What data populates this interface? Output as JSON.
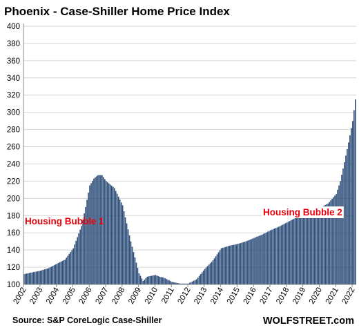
{
  "chart_data": {
    "type": "bar",
    "title": "Phoenix - Case-Shiller Home Price Index",
    "xlabel": "",
    "ylabel": "",
    "ylim": [
      100,
      400
    ],
    "yticks": [
      100,
      120,
      140,
      160,
      180,
      200,
      220,
      240,
      260,
      280,
      300,
      320,
      340,
      360,
      380,
      400
    ],
    "grid": "horizontal",
    "legend": "none",
    "bar_color": "#2e4f7a",
    "grid_color": "#d4d4d4",
    "annotation_color": "#e8000b",
    "x_tick_labels": [
      "2002",
      "2003",
      "2004",
      "2005",
      "2006",
      "2007",
      "2008",
      "2009",
      "2010",
      "2011",
      "2012",
      "2013",
      "2014",
      "2015",
      "2016",
      "2017",
      "2018",
      "2019",
      "2020",
      "2021",
      "2022"
    ],
    "monthly_start": "2002-01",
    "monthly_end": "2022-03",
    "anchor_dates": [
      "2002-01",
      "2002-07",
      "2003-01",
      "2003-07",
      "2004-01",
      "2004-07",
      "2005-01",
      "2005-04",
      "2005-07",
      "2005-10",
      "2006-01",
      "2006-04",
      "2006-07",
      "2006-10",
      "2007-01",
      "2007-07",
      "2008-01",
      "2008-07",
      "2009-01",
      "2009-04",
      "2009-07",
      "2010-01",
      "2010-04",
      "2010-07",
      "2011-01",
      "2011-07",
      "2012-01",
      "2012-07",
      "2013-01",
      "2013-07",
      "2014-01",
      "2014-07",
      "2015-01",
      "2015-07",
      "2016-01",
      "2016-07",
      "2017-01",
      "2017-07",
      "2018-01",
      "2018-07",
      "2019-01",
      "2019-07",
      "2020-01",
      "2020-07",
      "2021-01",
      "2021-04",
      "2021-07",
      "2021-10",
      "2022-01",
      "2022-03"
    ],
    "anchor_values": [
      112,
      114,
      116,
      119,
      124,
      129,
      142,
      155,
      168,
      190,
      215,
      223,
      227,
      227,
      220,
      212,
      192,
      150,
      113,
      104,
      109,
      111,
      109,
      108,
      103,
      101,
      101,
      106,
      118,
      128,
      142,
      145,
      147,
      150,
      154,
      158,
      163,
      167,
      172,
      177,
      180,
      185,
      189,
      194,
      205,
      220,
      242,
      265,
      290,
      315
    ],
    "annotations": [
      {
        "text": "Housing Bubble 1"
      },
      {
        "text": "Housing Bubble 2"
      }
    ],
    "source": "Source: S&P CoreLogic Case-Shiller",
    "brand": "WOLFSTREET.com"
  }
}
